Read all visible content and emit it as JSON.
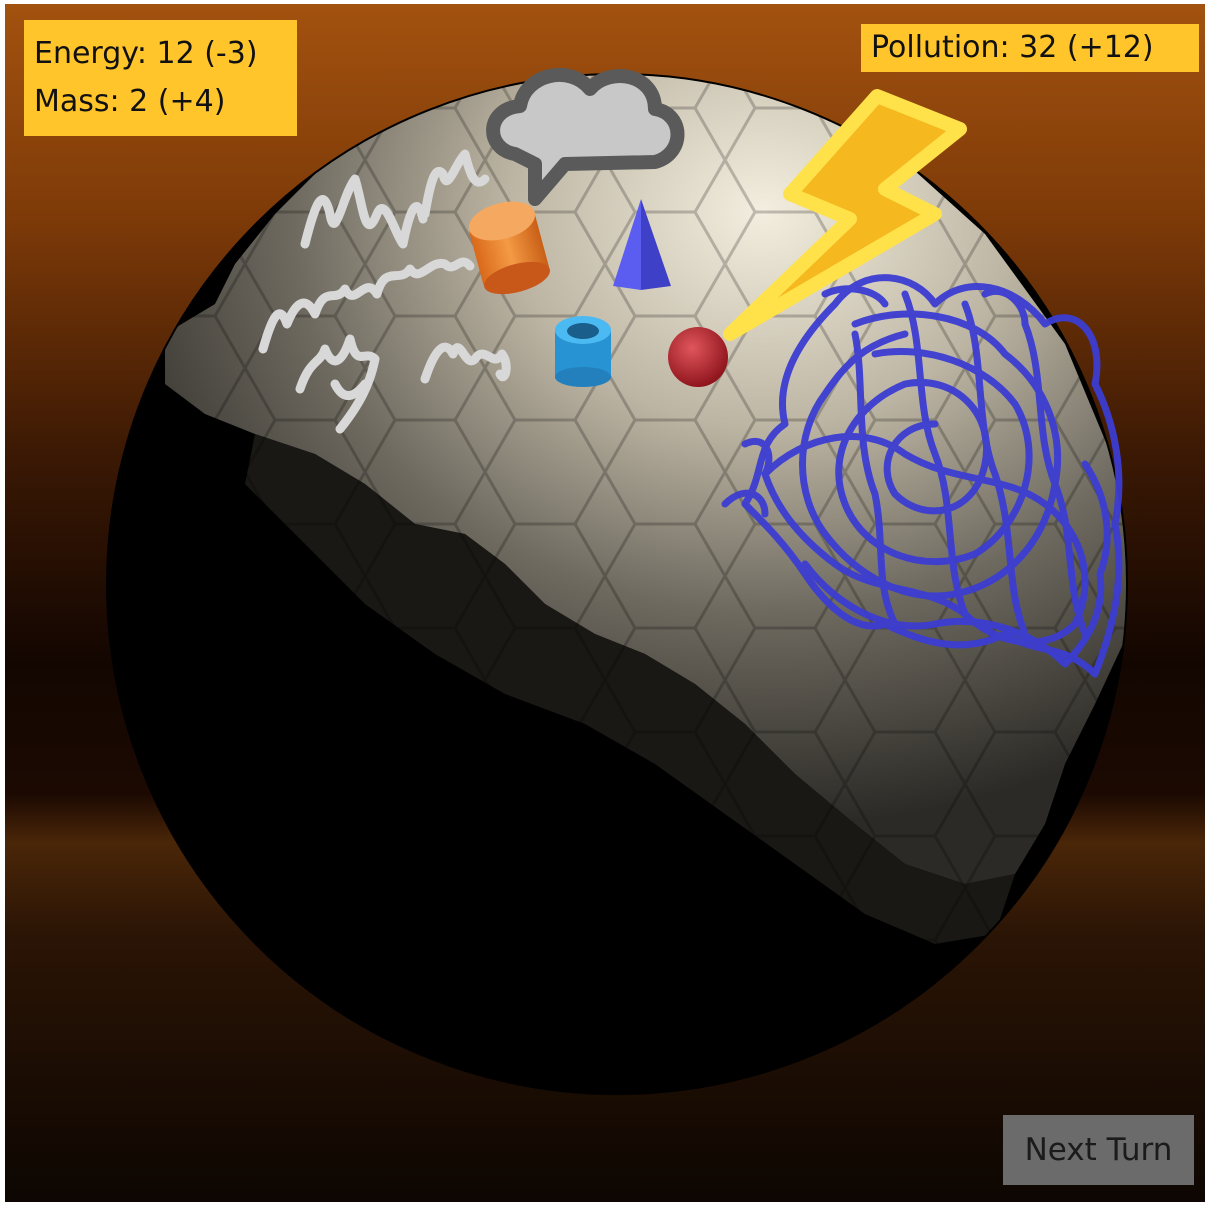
{
  "hud": {
    "energy_text": "Energy: 12 (-3)",
    "mass_text": "Mass: 2 (+4)",
    "pollution_text": "Pollution: 32 (+12)"
  },
  "controls": {
    "next_turn_label": "Next Turn"
  },
  "colors": {
    "hud_background": "#ffc52a",
    "sky_top": "#c06a1c",
    "button_background": "#6b6b6b",
    "scribble_blue": "#3c3dd2",
    "scribble_white": "#d8d8d8"
  },
  "planet": {
    "units": [
      {
        "name": "orange-cylinder-building",
        "color": "#f08a2e"
      },
      {
        "name": "blue-pyramid-building",
        "color": "#4c4de0"
      },
      {
        "name": "blue-ring-building",
        "color": "#2a9fe0"
      },
      {
        "name": "red-sphere-unit",
        "color": "#b0202a"
      }
    ],
    "hazards": [
      "storm-cloud-icon",
      "lightning-bolt-icon",
      "pollution-scribble"
    ]
  }
}
